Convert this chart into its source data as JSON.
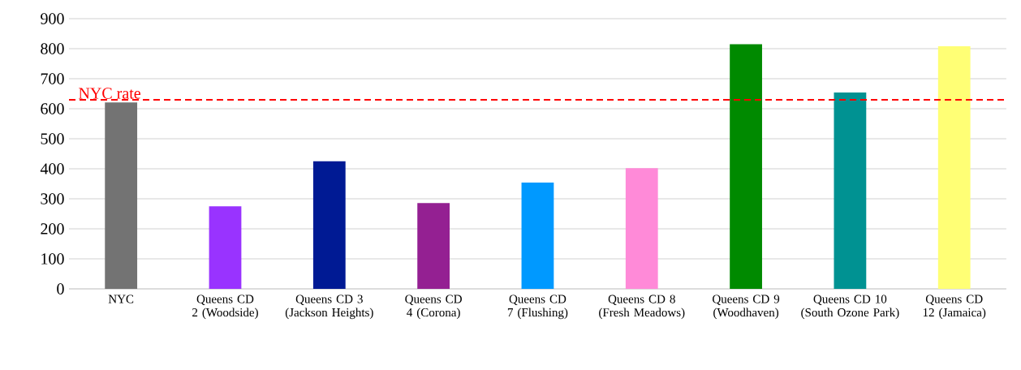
{
  "chart_data": {
    "type": "bar",
    "categories": [
      "NYC",
      "Queens CD 2 (Woodside)",
      "Queens CD 3 (Jackson Heights)",
      "Queens CD 4 (Corona)",
      "Queens CD 7 (Flushing)",
      "Queens CD 8 (Fresh Meadows)",
      "Queens CD 9 (Woodhaven)",
      "Queens CD 10 (South Ozone Park)",
      "Queens CD 12 (Jamaica)"
    ],
    "values": [
      621,
      275,
      425,
      286,
      354,
      402,
      815,
      654,
      808
    ],
    "colors": [
      "#737373",
      "#9933ff",
      "#001a94",
      "#942092",
      "#0099ff",
      "#ff8ad8",
      "#008a00",
      "#009292",
      "#ffff75"
    ],
    "ylim": [
      0,
      900
    ],
    "yticks": [
      0,
      100,
      200,
      300,
      400,
      500,
      600,
      700,
      800,
      900
    ],
    "grid": "y",
    "ref_lines": [
      {
        "axis": "y",
        "value": 630,
        "label": "NYC rate",
        "color": "#ff0000",
        "line_style": "dashed"
      }
    ]
  }
}
